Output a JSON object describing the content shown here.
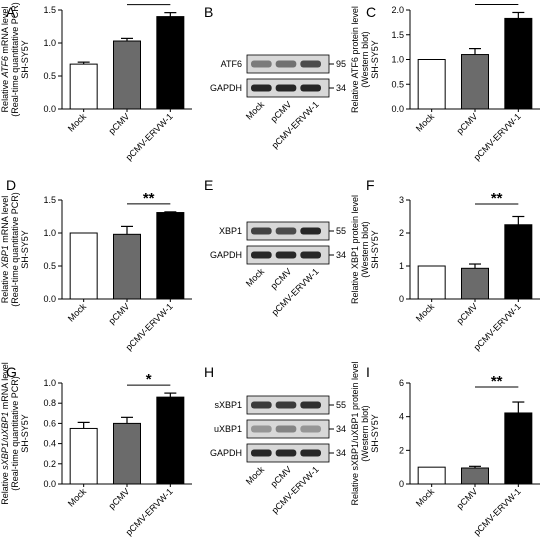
{
  "colors": {
    "mock": "#ffffff",
    "pcmv": "#6b6b6b",
    "erv": "#000000",
    "band": "#1e1e1e",
    "blot_bg": "#d8d8d8"
  },
  "groups": [
    "Mock",
    "pCMV",
    "pCMV-ERVW-1"
  ],
  "chart_data": [
    {
      "panel": "A",
      "type": "bar",
      "categories": [
        "Mock",
        "pCMV",
        "pCMV-ERVW-1"
      ],
      "values": [
        0.68,
        1.03,
        1.4
      ],
      "errors": [
        0.03,
        0.04,
        0.06
      ],
      "ylabel_lines": [
        [
          "Relative ",
          "ATF6",
          " mRNA level"
        ],
        [
          "(Real-time quantitative PCR)"
        ],
        [
          "SH-SY5Y"
        ]
      ],
      "ylim": [
        0,
        1.5
      ],
      "yticks": [
        "0.0",
        "0.5",
        "1.0",
        "1.5"
      ],
      "significance": [
        {
          "from": 1,
          "to": 2,
          "label": "*"
        }
      ]
    },
    {
      "panel": "C",
      "type": "bar",
      "categories": [
        "Mock",
        "pCMV",
        "pCMV-ERVW-1"
      ],
      "values": [
        1.0,
        1.1,
        1.83
      ],
      "errors": [
        0,
        0.12,
        0.12
      ],
      "ylabel_lines": [
        [
          "Relative ATF6 protein level"
        ],
        [
          "(Western blot)"
        ],
        [
          "SH-SY5Y"
        ]
      ],
      "ylim": [
        0,
        2.0
      ],
      "yticks": [
        "0.0",
        "0.5",
        "1.0",
        "1.5",
        "2.0"
      ],
      "significance": [
        {
          "from": 1,
          "to": 2,
          "label": "*"
        }
      ]
    },
    {
      "panel": "D",
      "type": "bar",
      "categories": [
        "Mock",
        "pCMV",
        "pCMV-ERVW-1"
      ],
      "values": [
        1.0,
        0.98,
        1.31
      ],
      "errors": [
        0,
        0.12,
        0.01
      ],
      "ylabel_lines": [
        [
          "Relative ",
          "XBP1",
          " mRNA level"
        ],
        [
          "(Real-time quantitative PCR)"
        ],
        [
          "SH-SY5Y"
        ]
      ],
      "ylim": [
        0,
        1.5
      ],
      "yticks": [
        "0.0",
        "0.5",
        "1.0",
        "1.5"
      ],
      "significance": [
        {
          "from": 1,
          "to": 2,
          "label": "**"
        }
      ]
    },
    {
      "panel": "F",
      "type": "bar",
      "categories": [
        "Mock",
        "pCMV",
        "pCMV-ERVW-1"
      ],
      "values": [
        1.0,
        0.93,
        2.25
      ],
      "errors": [
        0,
        0.13,
        0.25
      ],
      "ylabel_lines": [
        [
          "Relative XBP1 protein level"
        ],
        [
          "(Western blot)"
        ],
        [
          "SH-SY5Y"
        ]
      ],
      "ylim": [
        0,
        3
      ],
      "yticks": [
        "0",
        "1",
        "2",
        "3"
      ],
      "significance": [
        {
          "from": 1,
          "to": 2,
          "label": "**"
        }
      ]
    },
    {
      "panel": "G",
      "type": "bar",
      "categories": [
        "Mock",
        "pCMV",
        "pCMV-ERVW-1"
      ],
      "values": [
        0.55,
        0.6,
        0.86
      ],
      "errors": [
        0.06,
        0.06,
        0.04
      ],
      "ylabel_lines": [
        [
          "Relative ",
          "sXBP1/uXBP1",
          " mRNA level"
        ],
        [
          "(Real-time quantitative PCR)"
        ],
        [
          "SH-SY5Y"
        ]
      ],
      "ylim": [
        0,
        1.0
      ],
      "yticks": [
        "0.0",
        "0.2",
        "0.4",
        "0.6",
        "0.8",
        "1.0"
      ],
      "significance": [
        {
          "from": 1,
          "to": 2,
          "label": "*"
        }
      ]
    },
    {
      "panel": "I",
      "type": "bar",
      "categories": [
        "Mock",
        "pCMV",
        "pCMV-ERVW-1"
      ],
      "values": [
        1.0,
        0.95,
        4.22
      ],
      "errors": [
        0,
        0.1,
        0.65
      ],
      "ylabel_lines": [
        [
          "Relative sXBP1/uXBP1 protein level"
        ],
        [
          "(Western blot)"
        ],
        [
          "SH-SY5Y"
        ]
      ],
      "ylim": [
        0,
        6
      ],
      "yticks": [
        "0",
        "2",
        "4",
        "6"
      ],
      "significance": [
        {
          "from": 1,
          "to": 2,
          "label": "**"
        }
      ]
    }
  ],
  "blots": [
    {
      "panel": "B",
      "rows": [
        {
          "label": "ATF6",
          "marker": "95",
          "intensity": [
            0.5,
            0.55,
            0.75
          ]
        },
        {
          "label": "GAPDH",
          "marker": "34",
          "intensity": [
            0.95,
            0.95,
            0.95
          ]
        }
      ]
    },
    {
      "panel": "E",
      "rows": [
        {
          "label": "XBP1",
          "marker": "55",
          "intensity": [
            0.8,
            0.75,
            0.95
          ]
        },
        {
          "label": "GAPDH",
          "marker": "34",
          "intensity": [
            0.95,
            0.95,
            0.95
          ]
        }
      ]
    },
    {
      "panel": "H",
      "rows": [
        {
          "label": "sXBP1",
          "marker": "55",
          "intensity": [
            0.85,
            0.85,
            0.9
          ]
        },
        {
          "label": "uXBP1",
          "marker": "34",
          "intensity": [
            0.35,
            0.45,
            0.35
          ]
        },
        {
          "label": "GAPDH",
          "marker": "34",
          "intensity": [
            0.95,
            0.95,
            0.95
          ]
        }
      ]
    }
  ]
}
